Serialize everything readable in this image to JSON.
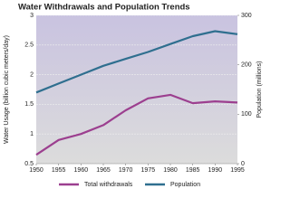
{
  "chart_data": {
    "type": "line",
    "title": "Water Withdrawals and Population Trends",
    "x": [
      1950,
      1955,
      1960,
      1965,
      1970,
      1975,
      1980,
      1985,
      1990,
      1995
    ],
    "xlim": [
      1950,
      1995
    ],
    "xticks": [
      1950,
      1955,
      1960,
      1965,
      1970,
      1975,
      1980,
      1985,
      1990,
      1995
    ],
    "ylabel": "Water Usage (billion cubic meters/day)",
    "y2label": "Population (millions)",
    "ylim": [
      0.5,
      3
    ],
    "yticks": [
      0.5,
      1,
      1.5,
      2,
      2.5,
      3
    ],
    "y2lim": [
      0,
      300
    ],
    "y2ticks": [
      0,
      100,
      200,
      300
    ],
    "grid": true,
    "series": [
      {
        "name": "Total withdrawals",
        "color": "#9c3f8f",
        "values": [
          0.65,
          0.9,
          1.0,
          1.15,
          1.4,
          1.6,
          1.66,
          1.52,
          1.55,
          1.53
        ]
      },
      {
        "name": "Population",
        "color": "#2f6f8f",
        "axis": "y2",
        "values": [
          144,
          162,
          180,
          198,
          212,
          226,
          242,
          258,
          268,
          262
        ]
      }
    ]
  }
}
